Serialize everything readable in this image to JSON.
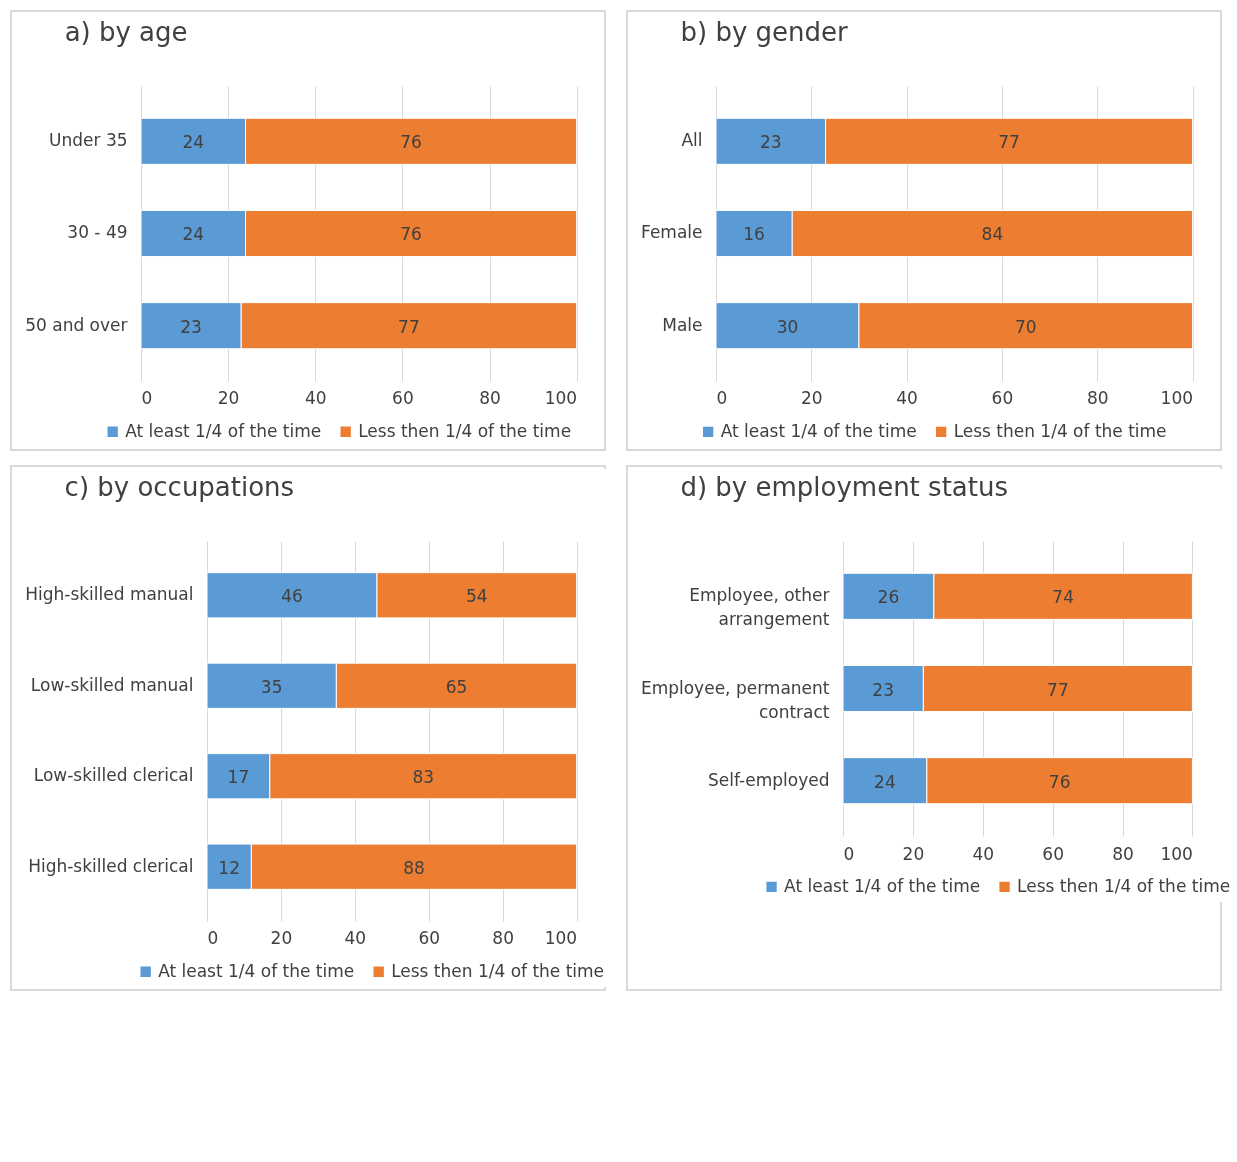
{
  "chart_data": [
    {
      "type": "bar",
      "title": "a)  by age",
      "orientation": "horizontal",
      "stacked": true,
      "categories": [
        "Under 35",
        "30 - 49",
        "50 and over"
      ],
      "series": [
        {
          "name": "At least 1/4 of the time",
          "color": "#5b9bd5",
          "values": [
            24,
            24,
            23
          ]
        },
        {
          "name": "Less then 1/4 of the time",
          "color": "#ed7d31",
          "values": [
            76,
            76,
            77
          ]
        }
      ],
      "xlim": [
        0,
        100
      ],
      "xticks": [
        0,
        20,
        40,
        60,
        80,
        100
      ],
      "grid": "x",
      "legend": "bottom",
      "data_labels": true
    },
    {
      "type": "bar",
      "title": "b)  by gender",
      "orientation": "horizontal",
      "stacked": true,
      "categories": [
        "All",
        "Female",
        "Male"
      ],
      "series": [
        {
          "name": "At least 1/4 of the time",
          "color": "#5b9bd5",
          "values": [
            23,
            16,
            30
          ]
        },
        {
          "name": "Less then 1/4 of the time",
          "color": "#ed7d31",
          "values": [
            77,
            84,
            70
          ]
        }
      ],
      "xlim": [
        0,
        100
      ],
      "xticks": [
        0,
        20,
        40,
        60,
        80,
        100
      ],
      "grid": "x",
      "legend": "bottom",
      "data_labels": true
    },
    {
      "type": "bar",
      "title": "c)  by occupations",
      "orientation": "horizontal",
      "stacked": true,
      "categories": [
        "High-skilled manual",
        "Low-skilled manual",
        "Low-skilled clerical",
        "High-skilled clerical"
      ],
      "series": [
        {
          "name": "At least 1/4 of the time",
          "color": "#5b9bd5",
          "values": [
            46,
            35,
            17,
            12
          ]
        },
        {
          "name": "Less then 1/4 of the time",
          "color": "#ed7d31",
          "values": [
            54,
            65,
            83,
            88
          ]
        }
      ],
      "xlim": [
        0,
        100
      ],
      "xticks": [
        0,
        20,
        40,
        60,
        80,
        100
      ],
      "grid": "x",
      "legend": "bottom",
      "data_labels": true
    },
    {
      "type": "bar",
      "title": "d)  by employment status",
      "orientation": "horizontal",
      "stacked": true,
      "categories": [
        "Employee, other arrangement",
        "Employee, permanent contract",
        "Self-employed"
      ],
      "series": [
        {
          "name": "At least 1/4 of the time",
          "color": "#5b9bd5",
          "values": [
            26,
            23,
            24
          ]
        },
        {
          "name": "Less then 1/4 of the time",
          "color": "#ed7d31",
          "values": [
            74,
            77,
            76
          ]
        }
      ],
      "xlim": [
        0,
        100
      ],
      "xticks": [
        0,
        20,
        40,
        60,
        80,
        100
      ],
      "grid": "x",
      "legend": "bottom",
      "data_labels": true
    }
  ]
}
